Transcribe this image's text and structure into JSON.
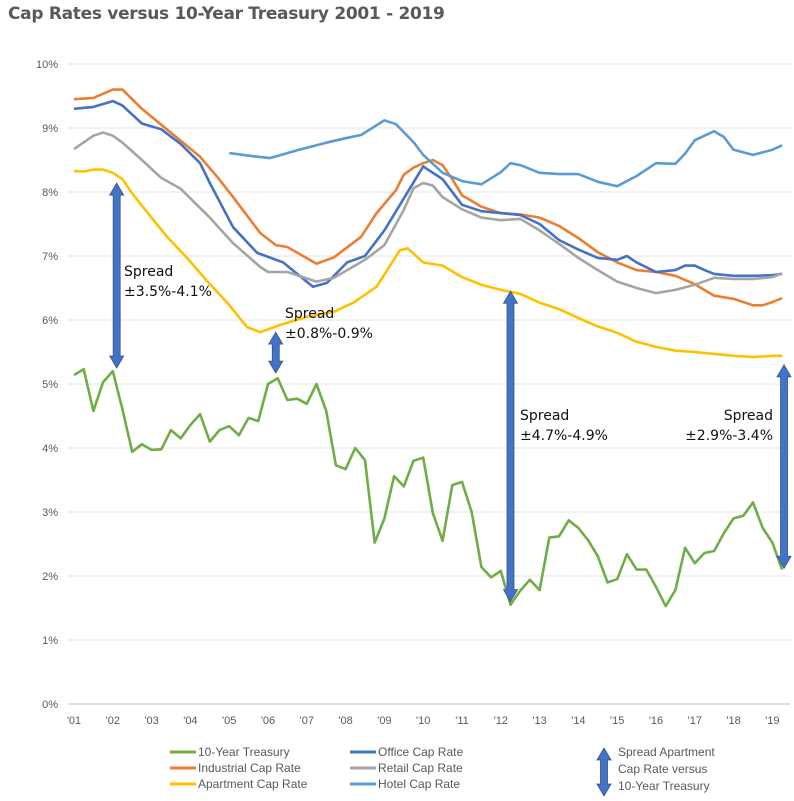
{
  "chart_data": {
    "type": "line",
    "title": "Cap Rates versus 10-Year Treasury 2001 - 2019",
    "xlabel": "",
    "ylabel": "",
    "x_ticks": [
      "'01",
      "'02",
      "'03",
      "'04",
      "'05",
      "'06",
      "'07",
      "'08",
      "'09",
      "'10",
      "'11",
      "'12",
      "'13",
      "'14",
      "'15",
      "'16",
      "'17",
      "'18",
      "'19"
    ],
    "y_ticks": [
      "0%",
      "1%",
      "2%",
      "3%",
      "4%",
      "5%",
      "6%",
      "7%",
      "8%",
      "9%",
      "10%"
    ],
    "xlim": [
      2001,
      2019.5
    ],
    "ylim": [
      0,
      10
    ],
    "grid": "horizontal",
    "legend_position": "bottom",
    "series": [
      {
        "name": "10-Year Treasury",
        "color": "#70AD47",
        "points": [
          [
            2001,
            5.14
          ],
          [
            2001.25,
            5.23
          ],
          [
            2001.5,
            4.58
          ],
          [
            2001.75,
            5.03
          ],
          [
            2002,
            5.2
          ],
          [
            2002.25,
            4.6
          ],
          [
            2002.5,
            3.94
          ],
          [
            2002.75,
            4.06
          ],
          [
            2003,
            3.97
          ],
          [
            2003.25,
            3.98
          ],
          [
            2003.5,
            4.28
          ],
          [
            2003.75,
            4.15
          ],
          [
            2004,
            4.36
          ],
          [
            2004.25,
            4.53
          ],
          [
            2004.5,
            4.1
          ],
          [
            2004.75,
            4.28
          ],
          [
            2005,
            4.34
          ],
          [
            2005.25,
            4.2
          ],
          [
            2005.5,
            4.47
          ],
          [
            2005.75,
            4.42
          ],
          [
            2006,
            5.0
          ],
          [
            2006.25,
            5.09
          ],
          [
            2006.5,
            4.75
          ],
          [
            2006.75,
            4.77
          ],
          [
            2007,
            4.69
          ],
          [
            2007.25,
            5.0
          ],
          [
            2007.5,
            4.58
          ],
          [
            2007.75,
            3.73
          ],
          [
            2008,
            3.67
          ],
          [
            2008.25,
            4.0
          ],
          [
            2008.5,
            3.81
          ],
          [
            2008.75,
            2.52
          ],
          [
            2009,
            2.9
          ],
          [
            2009.25,
            3.56
          ],
          [
            2009.5,
            3.4
          ],
          [
            2009.75,
            3.8
          ],
          [
            2010,
            3.85
          ],
          [
            2010.25,
            2.98
          ],
          [
            2010.5,
            2.55
          ],
          [
            2010.75,
            3.42
          ],
          [
            2011,
            3.47
          ],
          [
            2011.25,
            3.0
          ],
          [
            2011.5,
            2.14
          ],
          [
            2011.75,
            1.98
          ],
          [
            2012,
            2.08
          ],
          [
            2012.25,
            1.55
          ],
          [
            2012.5,
            1.77
          ],
          [
            2012.75,
            1.94
          ],
          [
            2013,
            1.78
          ],
          [
            2013.25,
            2.6
          ],
          [
            2013.5,
            2.62
          ],
          [
            2013.75,
            2.87
          ],
          [
            2014,
            2.75
          ],
          [
            2014.25,
            2.56
          ],
          [
            2014.5,
            2.31
          ],
          [
            2014.75,
            1.9
          ],
          [
            2015,
            1.95
          ],
          [
            2015.25,
            2.34
          ],
          [
            2015.5,
            2.1
          ],
          [
            2015.75,
            2.1
          ],
          [
            2016,
            1.83
          ],
          [
            2016.25,
            1.53
          ],
          [
            2016.5,
            1.78
          ],
          [
            2016.75,
            2.44
          ],
          [
            2017,
            2.2
          ],
          [
            2017.25,
            2.36
          ],
          [
            2017.5,
            2.39
          ],
          [
            2017.75,
            2.67
          ],
          [
            2018,
            2.9
          ],
          [
            2018.25,
            2.94
          ],
          [
            2018.5,
            3.15
          ],
          [
            2018.75,
            2.75
          ],
          [
            2019,
            2.52
          ],
          [
            2019.25,
            2.1
          ]
        ]
      },
      {
        "name": "Industrial Cap Rate",
        "color": "#ED7D31",
        "points": [
          [
            2001,
            9.45
          ],
          [
            2001.5,
            9.47
          ],
          [
            2002,
            9.6
          ],
          [
            2002.25,
            9.6
          ],
          [
            2002.75,
            9.3
          ],
          [
            2003.25,
            9.05
          ],
          [
            2003.75,
            8.8
          ],
          [
            2004.25,
            8.55
          ],
          [
            2004.7,
            8.23
          ],
          [
            2005.1,
            7.92
          ],
          [
            2005.8,
            7.36
          ],
          [
            2006.2,
            7.17
          ],
          [
            2006.5,
            7.14
          ],
          [
            2007.25,
            6.88
          ],
          [
            2007.7,
            6.98
          ],
          [
            2008.4,
            7.3
          ],
          [
            2008.8,
            7.67
          ],
          [
            2009.3,
            8.03
          ],
          [
            2009.5,
            8.27
          ],
          [
            2009.75,
            8.38
          ],
          [
            2010,
            8.45
          ],
          [
            2010.25,
            8.5
          ],
          [
            2010.5,
            8.42
          ],
          [
            2010.75,
            8.2
          ],
          [
            2011,
            7.95
          ],
          [
            2011.5,
            7.77
          ],
          [
            2012,
            7.67
          ],
          [
            2012.5,
            7.65
          ],
          [
            2013,
            7.6
          ],
          [
            2013.5,
            7.47
          ],
          [
            2014,
            7.28
          ],
          [
            2014.5,
            7.06
          ],
          [
            2015,
            6.9
          ],
          [
            2015.5,
            6.78
          ],
          [
            2016,
            6.75
          ],
          [
            2016.5,
            6.69
          ],
          [
            2017,
            6.56
          ],
          [
            2017.5,
            6.38
          ],
          [
            2018,
            6.33
          ],
          [
            2018.5,
            6.23
          ],
          [
            2018.75,
            6.23
          ],
          [
            2019,
            6.28
          ],
          [
            2019.25,
            6.34
          ]
        ]
      },
      {
        "name": "Apartment Cap Rate",
        "color": "#FFC000",
        "points": [
          [
            2001,
            8.33
          ],
          [
            2001.25,
            8.32
          ],
          [
            2001.5,
            8.35
          ],
          [
            2001.75,
            8.35
          ],
          [
            2002,
            8.3
          ],
          [
            2002.25,
            8.2
          ],
          [
            2002.5,
            7.98
          ],
          [
            2003.05,
            7.56
          ],
          [
            2003.4,
            7.3
          ],
          [
            2003.9,
            6.98
          ],
          [
            2004.4,
            6.63
          ],
          [
            2004.95,
            6.27
          ],
          [
            2005.46,
            5.89
          ],
          [
            2005.8,
            5.81
          ],
          [
            2006.3,
            5.92
          ],
          [
            2007,
            6.05
          ],
          [
            2007.7,
            6.13
          ],
          [
            2008.2,
            6.27
          ],
          [
            2008.8,
            6.52
          ],
          [
            2009.4,
            7.09
          ],
          [
            2009.6,
            7.12
          ],
          [
            2010,
            6.9
          ],
          [
            2010.5,
            6.85
          ],
          [
            2011,
            6.67
          ],
          [
            2011.5,
            6.55
          ],
          [
            2012,
            6.47
          ],
          [
            2012.5,
            6.41
          ],
          [
            2013,
            6.27
          ],
          [
            2013.5,
            6.17
          ],
          [
            2014,
            6.03
          ],
          [
            2014.5,
            5.9
          ],
          [
            2015,
            5.8
          ],
          [
            2015.5,
            5.66
          ],
          [
            2016,
            5.58
          ],
          [
            2016.5,
            5.52
          ],
          [
            2017,
            5.5
          ],
          [
            2017.5,
            5.47
          ],
          [
            2018,
            5.44
          ],
          [
            2018.5,
            5.42
          ],
          [
            2019,
            5.44
          ],
          [
            2019.25,
            5.44
          ]
        ]
      },
      {
        "name": "Office Cap Rate",
        "color": "#4472C4",
        "points": [
          [
            2001,
            9.3
          ],
          [
            2001.5,
            9.33
          ],
          [
            2002,
            9.42
          ],
          [
            2002.25,
            9.35
          ],
          [
            2002.75,
            9.07
          ],
          [
            2003.25,
            8.98
          ],
          [
            2003.75,
            8.75
          ],
          [
            2004.25,
            8.45
          ],
          [
            2004.5,
            8.14
          ],
          [
            2005.1,
            7.45
          ],
          [
            2005.72,
            7.05
          ],
          [
            2006.39,
            6.9
          ],
          [
            2007.16,
            6.52
          ],
          [
            2007.52,
            6.58
          ],
          [
            2008.04,
            6.9
          ],
          [
            2008.5,
            7.0
          ],
          [
            2009,
            7.4
          ],
          [
            2009.5,
            7.9
          ],
          [
            2010,
            8.4
          ],
          [
            2010.5,
            8.2
          ],
          [
            2011,
            7.8
          ],
          [
            2011.5,
            7.7
          ],
          [
            2012,
            7.67
          ],
          [
            2012.5,
            7.64
          ],
          [
            2013,
            7.5
          ],
          [
            2013.5,
            7.25
          ],
          [
            2014,
            7.1
          ],
          [
            2014.5,
            6.97
          ],
          [
            2015,
            6.94
          ],
          [
            2015.25,
            7.0
          ],
          [
            2015.5,
            6.9
          ],
          [
            2016,
            6.75
          ],
          [
            2016.5,
            6.78
          ],
          [
            2016.75,
            6.85
          ],
          [
            2017,
            6.85
          ],
          [
            2017.25,
            6.78
          ],
          [
            2017.5,
            6.72
          ],
          [
            2018,
            6.69
          ],
          [
            2018.5,
            6.69
          ],
          [
            2019,
            6.7
          ],
          [
            2019.25,
            6.72
          ]
        ]
      },
      {
        "name": "Retail Cap Rate",
        "color": "#A5A5A5",
        "points": [
          [
            2001,
            8.67
          ],
          [
            2001.5,
            8.88
          ],
          [
            2001.75,
            8.93
          ],
          [
            2002,
            8.88
          ],
          [
            2002.25,
            8.77
          ],
          [
            2002.75,
            8.5
          ],
          [
            2003.25,
            8.22
          ],
          [
            2003.75,
            8.05
          ],
          [
            2004.5,
            7.6
          ],
          [
            2005.1,
            7.2
          ],
          [
            2005.8,
            6.83
          ],
          [
            2006,
            6.75
          ],
          [
            2006.5,
            6.75
          ],
          [
            2007.25,
            6.6
          ],
          [
            2007.7,
            6.66
          ],
          [
            2008.5,
            6.94
          ],
          [
            2009,
            7.17
          ],
          [
            2009.5,
            7.72
          ],
          [
            2009.75,
            8.06
          ],
          [
            2010,
            8.14
          ],
          [
            2010.25,
            8.1
          ],
          [
            2010.5,
            7.92
          ],
          [
            2011,
            7.73
          ],
          [
            2011.5,
            7.6
          ],
          [
            2012,
            7.56
          ],
          [
            2012.5,
            7.58
          ],
          [
            2013,
            7.4
          ],
          [
            2013.5,
            7.19
          ],
          [
            2014,
            6.97
          ],
          [
            2014.5,
            6.78
          ],
          [
            2015,
            6.6
          ],
          [
            2015.5,
            6.5
          ],
          [
            2016,
            6.42
          ],
          [
            2016.5,
            6.47
          ],
          [
            2017,
            6.55
          ],
          [
            2017.5,
            6.66
          ],
          [
            2018,
            6.64
          ],
          [
            2018.5,
            6.64
          ],
          [
            2019,
            6.67
          ],
          [
            2019.25,
            6.73
          ]
        ]
      },
      {
        "name": "Hotel Cap Rate",
        "color": "#5B9BD5",
        "points": [
          [
            2005,
            8.61
          ],
          [
            2005.6,
            8.56
          ],
          [
            2006.05,
            8.53
          ],
          [
            2006.8,
            8.66
          ],
          [
            2007.5,
            8.77
          ],
          [
            2008,
            8.84
          ],
          [
            2008.4,
            8.89
          ],
          [
            2009,
            9.12
          ],
          [
            2009.3,
            9.06
          ],
          [
            2009.75,
            8.78
          ],
          [
            2010,
            8.58
          ],
          [
            2010.5,
            8.3
          ],
          [
            2011,
            8.17
          ],
          [
            2011.5,
            8.12
          ],
          [
            2012,
            8.31
          ],
          [
            2012.25,
            8.45
          ],
          [
            2012.5,
            8.42
          ],
          [
            2013,
            8.3
          ],
          [
            2013.5,
            8.28
          ],
          [
            2014,
            8.28
          ],
          [
            2014.5,
            8.16
          ],
          [
            2015,
            8.09
          ],
          [
            2015.5,
            8.25
          ],
          [
            2016,
            8.45
          ],
          [
            2016.5,
            8.44
          ],
          [
            2016.75,
            8.6
          ],
          [
            2017,
            8.81
          ],
          [
            2017.5,
            8.95
          ],
          [
            2017.75,
            8.86
          ],
          [
            2018,
            8.66
          ],
          [
            2018.5,
            8.58
          ],
          [
            2019,
            8.66
          ],
          [
            2019.25,
            8.73
          ]
        ]
      }
    ],
    "spread_arrows": {
      "color": "#4472C4",
      "legend_label": [
        "Spread Apartment",
        "Cap Rate versus",
        "10-Year Treasury"
      ],
      "items": [
        {
          "x": 2002.1,
          "from": 8.14,
          "to": 5.25,
          "label1": "Spread",
          "label2": "±3.5%-4.1%"
        },
        {
          "x": 2006.2,
          "from": 5.81,
          "to": 5.17,
          "label1": "Spread",
          "label2": "±0.8%-0.9%"
        },
        {
          "x": 2012.25,
          "from": 6.45,
          "to": 1.6,
          "label1": "Spread",
          "label2": "±4.7%-4.9%"
        },
        {
          "x": 2019.3,
          "from": 5.3,
          "to": 2.12,
          "label1": "Spread",
          "label2": "±2.9%-3.4%"
        }
      ]
    }
  }
}
